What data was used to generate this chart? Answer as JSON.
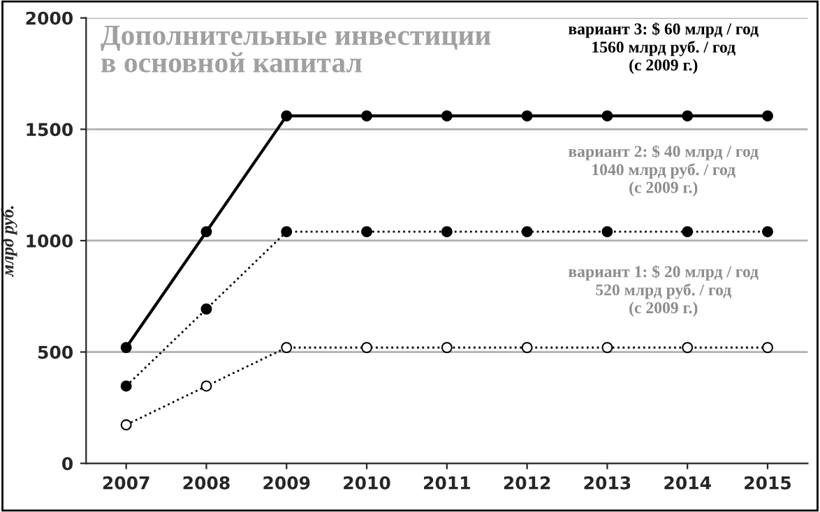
{
  "chart_data": {
    "type": "line",
    "title": "Дополнительные инвестиции\nв основной капитал",
    "ylabel": "млрд руб.",
    "categories": [
      "2007",
      "2008",
      "2009",
      "2010",
      "2011",
      "2012",
      "2013",
      "2014",
      "2015"
    ],
    "series": [
      {
        "color": "#000000",
        "line_style": "solid",
        "marker": "circle",
        "values": [
          520,
          1040,
          1560,
          1560,
          1560,
          1560,
          1560,
          1560,
          1560
        ]
      },
      {
        "color": "#000000",
        "line_style": "dotted",
        "marker": "circle",
        "values": [
          347,
          693,
          1040,
          1040,
          1040,
          1040,
          1040,
          1040,
          1040
        ]
      },
      {
        "color": "#000000",
        "line_style": "dotted",
        "marker": "circle",
        "values": [
          173,
          347,
          520,
          520,
          520,
          520,
          520,
          520,
          520
        ]
      }
    ],
    "annotations": [
      "вариант 3: $ 60 млрд / год\n1560 млрд руб. / год\n(с 2009 г.)",
      "вариант 2: $ 40 млрд / год\n1040 млрд руб. / год\n(с 2009 г.)",
      "вариант 1: $ 20 млрд / год\n520 млрд руб. / год\n(с 2009 г.)"
    ],
    "ylim": [
      0,
      2000
    ],
    "yticks": [
      0,
      500,
      1000,
      1500,
      2000
    ],
    "grid": "y",
    "legend": false
  }
}
